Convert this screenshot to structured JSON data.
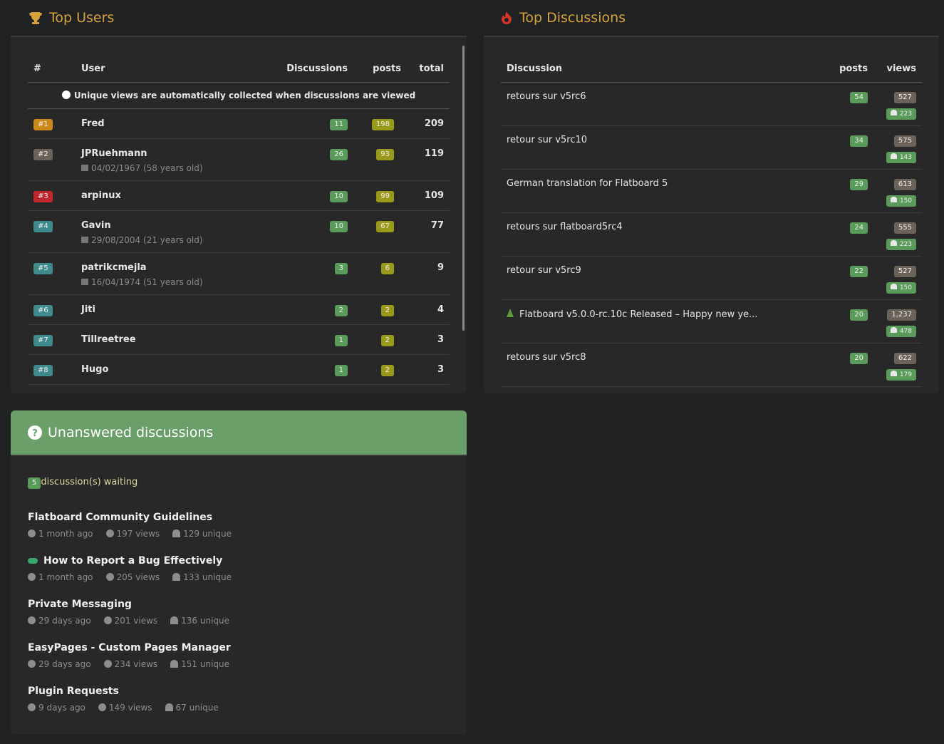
{
  "top_users": {
    "title": "Top Users",
    "columns": [
      "#",
      "User",
      "Discussions",
      "posts",
      "total"
    ],
    "notice": "Unique views are automatically collected when discussions are viewed",
    "rows": [
      {
        "rank": "#1",
        "name": "Fred",
        "discussions": 11,
        "posts": 198,
        "total": 209
      },
      {
        "rank": "#2",
        "name": "JPRuehmann",
        "birthday": "04/02/1967 (58 years old)",
        "discussions": 26,
        "posts": 93,
        "total": 119
      },
      {
        "rank": "#3",
        "name": "arpinux",
        "discussions": 10,
        "posts": 99,
        "total": 109
      },
      {
        "rank": "#4",
        "name": "Gavin",
        "birthday": "29/08/2004 (21 years old)",
        "discussions": 10,
        "posts": 67,
        "total": 77
      },
      {
        "rank": "#5",
        "name": "patrikcmejla",
        "birthday": "16/04/1974 (51 years old)",
        "discussions": 3,
        "posts": 6,
        "total": 9
      },
      {
        "rank": "#6",
        "name": "Jiti",
        "discussions": 2,
        "posts": 2,
        "total": 4
      },
      {
        "rank": "#7",
        "name": "Tillreetree",
        "discussions": 1,
        "posts": 2,
        "total": 3
      },
      {
        "rank": "#8",
        "name": "Hugo",
        "discussions": 1,
        "posts": 2,
        "total": 3
      }
    ]
  },
  "top_discussions": {
    "title": "Top Discussions",
    "columns": [
      "Discussion",
      "posts",
      "views"
    ],
    "rows": [
      {
        "title": "retours sur v5rc6",
        "posts": 54,
        "views": "527",
        "unique": 223
      },
      {
        "title": "retour sur v5rc10",
        "posts": 34,
        "views": "575",
        "unique": 143
      },
      {
        "title": "German translation for Flatboard 5",
        "posts": 29,
        "views": "613",
        "unique": 150
      },
      {
        "title": "retours sur flatboard5rc4",
        "posts": 24,
        "views": "555",
        "unique": 223
      },
      {
        "title": "retour sur v5rc9",
        "posts": 22,
        "views": "527",
        "unique": 150
      },
      {
        "title": "Flatboard v5.0.0-rc.10c Released – Happy new ye...",
        "posts": 20,
        "views": "1,237",
        "unique": 478
      },
      {
        "title": "retours sur v5rc8",
        "posts": 20,
        "views": "622",
        "unique": 179
      }
    ]
  },
  "unanswered": {
    "title": "Unanswered discussions",
    "count": 5,
    "waiting": "discussion(s) waiting",
    "items": [
      {
        "title": "Flatboard Community Guidelines",
        "age": "1 month ago",
        "views": "197 views",
        "unique": "129 unique"
      },
      {
        "title": "How to Report a Bug Effectively",
        "age": "1 month ago",
        "views": "205 views",
        "unique": "133 unique"
      },
      {
        "title": "Private Messaging",
        "age": "29 days ago",
        "views": "201 views",
        "unique": "136 unique"
      },
      {
        "title": "EasyPages - Custom Pages Manager",
        "age": "29 days ago",
        "views": "234 views",
        "unique": "151 unique"
      },
      {
        "title": "Plugin Requests",
        "age": "9 days ago",
        "views": "149 views",
        "unique": "67 unique"
      }
    ]
  }
}
